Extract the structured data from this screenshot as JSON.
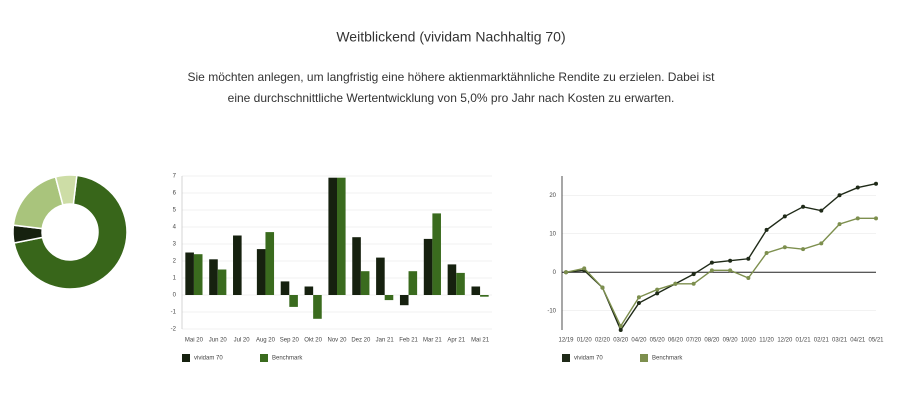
{
  "header": {
    "title": "Weitblickend (vividam Nachhaltig 70)",
    "text": [
      "Sie möchten anlegen, um langfristig eine höhere aktienmarktähnliche Rendite zu erzielen. Dabei ist",
      "eine durchschnittliche Wertentwicklung von 5,0% pro Jahr nach Kosten zu erwarten."
    ]
  },
  "chart_data": [
    {
      "type": "pie",
      "values": [
        70,
        5,
        19,
        6
      ],
      "colors": [
        "#38661a",
        "#16210f",
        "#a9c47c",
        "#cddda6"
      ]
    },
    {
      "type": "bar",
      "categories": [
        "Mai 20",
        "Jun 20",
        "Jul 20",
        "Aug 20",
        "Sep 20",
        "Okt 20",
        "Nov 20",
        "Dez 20",
        "Jan 21",
        "Feb 21",
        "Mar 21",
        "Apr 21",
        "Mai 21"
      ],
      "series": [
        {
          "name": "vividam 70",
          "color": "#16210f",
          "values": [
            2.5,
            2.1,
            3.5,
            2.7,
            0.8,
            0.5,
            6.9,
            3.4,
            2.2,
            -0.6,
            3.3,
            1.8,
            0.5
          ]
        },
        {
          "name": "Benchmark",
          "color": "#3a6b1e",
          "values": [
            2.4,
            1.5,
            0,
            3.7,
            -0.7,
            -1.4,
            6.9,
            1.4,
            -0.3,
            1.4,
            4.8,
            1.3,
            -0.1
          ]
        }
      ],
      "ylim": [
        -2,
        7
      ],
      "yticks": [
        -2,
        -1,
        0,
        1,
        2,
        3,
        4,
        5,
        6,
        7
      ],
      "grid": true
    },
    {
      "type": "line",
      "categories": [
        "12/19",
        "01/20",
        "02/20",
        "03/20",
        "04/20",
        "05/20",
        "06/20",
        "07/20",
        "08/20",
        "09/20",
        "10/20",
        "11/20",
        "12/20",
        "01/21",
        "02/21",
        "03/21",
        "04/21",
        "05/21"
      ],
      "series": [
        {
          "name": "vividam 70",
          "color": "#1f2a18",
          "values": [
            0,
            0.5,
            -4,
            -15,
            -8,
            -5.5,
            -3,
            -0.5,
            2.5,
            3,
            3.5,
            11,
            14.5,
            17,
            16,
            20,
            22,
            23
          ]
        },
        {
          "name": "Benchmark",
          "color": "#7d8f4e",
          "values": [
            0,
            1,
            -4,
            -14,
            -6.5,
            -4.5,
            -3,
            -3,
            0.5,
            0.5,
            -1.5,
            5,
            6.5,
            6,
            7.5,
            12.5,
            14,
            14
          ]
        }
      ],
      "ylim": [
        -15,
        25
      ],
      "yticks": [
        -10,
        0,
        10,
        20
      ],
      "grid": true
    }
  ]
}
